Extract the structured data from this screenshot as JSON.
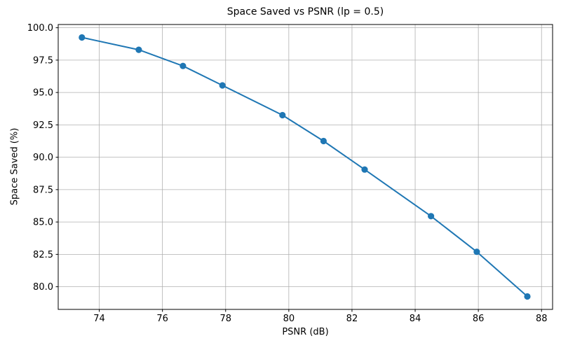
{
  "chart_data": {
    "type": "line",
    "title": "Space Saved vs PSNR (lp = 0.5)",
    "xlabel": "PSNR (dB)",
    "ylabel": "Space Saved (%)",
    "x": [
      73.45,
      75.25,
      76.65,
      77.9,
      79.8,
      81.1,
      82.4,
      84.5,
      85.95,
      87.55
    ],
    "y": [
      99.25,
      98.3,
      97.05,
      95.55,
      93.25,
      91.25,
      89.05,
      85.45,
      82.7,
      79.25
    ],
    "xlim": [
      72.7,
      88.35
    ],
    "ylim": [
      78.25,
      100.25
    ],
    "xticks": [
      74,
      76,
      78,
      80,
      82,
      84,
      86,
      88
    ],
    "xtick_labels": [
      "74",
      "76",
      "78",
      "80",
      "82",
      "84",
      "86",
      "88"
    ],
    "yticks": [
      80.0,
      82.5,
      85.0,
      87.5,
      90.0,
      92.5,
      95.0,
      97.5,
      100.0
    ],
    "ytick_labels": [
      "80.0",
      "82.5",
      "85.0",
      "87.5",
      "90.0",
      "92.5",
      "95.0",
      "97.5",
      "100.0"
    ],
    "grid": true,
    "has_legend": false,
    "marker": "circle",
    "line_color": "#1f77b4",
    "grid_color": "#b0b0b0",
    "spine_color": "#000000",
    "text_color": "#000000",
    "background": "#ffffff"
  }
}
